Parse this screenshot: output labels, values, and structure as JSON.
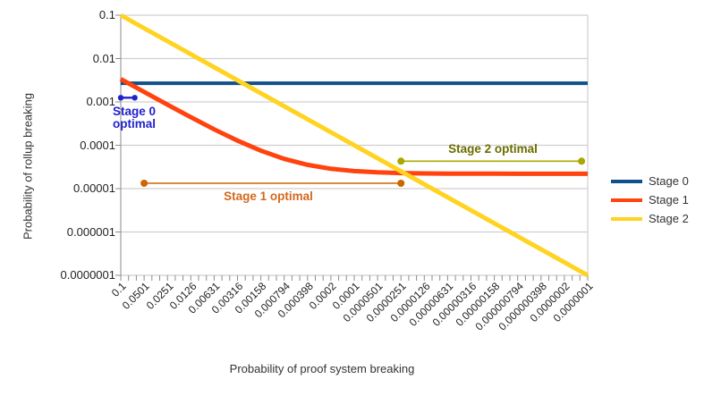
{
  "chart_data": {
    "type": "line",
    "x_scale": "log",
    "y_scale": "log",
    "xlabel": "Probability of proof system breaking",
    "ylabel": "Probability of rollup breaking",
    "x_range": [
      0.1,
      1e-07
    ],
    "y_range": [
      0.1,
      1e-07
    ],
    "grid": "horizontal",
    "legend_position": "right",
    "x_tick_labels": [
      "0.1",
      "0.0501",
      "0.0251",
      "0.0126",
      "0.00631",
      "0.00316",
      "0.00158",
      "0.000794",
      "0.000398",
      "0.0002",
      "0.0001",
      "0.0000501",
      "0.0000251",
      "0.0000126",
      "0.00000631",
      "0.00000316",
      "0.00000158",
      "0.000000794",
      "0.000000398",
      "0.0000002",
      "0.0000001"
    ],
    "y_tick_labels": [
      "0.1",
      "0.01",
      "0.001",
      "0.0001",
      "0.00001",
      "0.000001",
      "0.0000001"
    ],
    "series": [
      {
        "name": "Stage 0",
        "color": "#10508c",
        "points": [
          [
            0.1,
            0.0027
          ],
          [
            1e-07,
            0.0027
          ]
        ]
      },
      {
        "name": "Stage 1",
        "color": "#ff420e",
        "points": [
          [
            0.1,
            0.00337
          ],
          [
            0.0501,
            0.0017
          ],
          [
            0.0251,
            0.000863
          ],
          [
            0.0126,
            0.000444
          ],
          [
            0.00631,
            0.000233
          ],
          [
            0.00316,
            0.000128
          ],
          [
            0.00158,
            7.49e-05
          ],
          [
            0.000794,
            4.86e-05
          ],
          [
            0.000398,
            3.53e-05
          ],
          [
            0.0002,
            2.87e-05
          ],
          [
            0.0001,
            2.54e-05
          ],
          [
            5.01e-05,
            2.37e-05
          ],
          [
            2.51e-05,
            2.28e-05
          ],
          [
            1.26e-05,
            2.24e-05
          ],
          [
            6.31e-06,
            2.22e-05
          ],
          [
            3.16e-06,
            2.21e-05
          ],
          [
            1.58e-06,
            2.21e-05
          ],
          [
            7.94e-07,
            2.2e-05
          ],
          [
            3.98e-07,
            2.2e-05
          ],
          [
            2e-07,
            2.2e-05
          ],
          [
            1e-07,
            2.2e-05
          ]
        ]
      },
      {
        "name": "Stage 2",
        "color": "#ffd320",
        "points": [
          [
            0.1,
            0.1
          ],
          [
            1e-07,
            1e-07
          ]
        ]
      }
    ],
    "annotations": [
      {
        "id": "stage0-optimal",
        "line1": "Stage 0",
        "line2": "optimal",
        "color": "#2222cc",
        "text_color": "#2222cc",
        "x_start": 0.1,
        "x_end": 0.0661,
        "y": 0.00125
      },
      {
        "id": "stage1-optimal",
        "text": "Stage 1 optimal",
        "color": "#cc6600",
        "text_color": "#d2691e",
        "x_start": 0.0501,
        "x_end": 2.51e-05,
        "y": 1.33e-05
      },
      {
        "id": "stage2-optimal",
        "text": "Stage 2 optimal",
        "color": "#a8a800",
        "text_color": "#6b6b00",
        "x_start": 2.51e-05,
        "x_end": 1.2e-07,
        "y": 4.3e-05
      }
    ]
  }
}
